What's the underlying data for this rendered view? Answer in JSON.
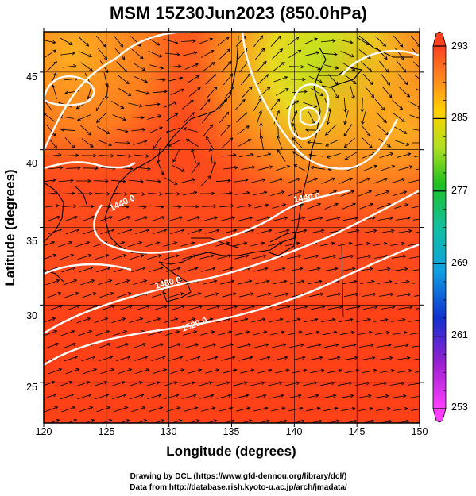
{
  "title": "MSM 15Z30Jun2023 (850.0hPa)",
  "xlabel": "Longitude (degrees)",
  "ylabel": "Latitude  (degrees)",
  "x_ticks": [
    "120",
    "125",
    "130",
    "135",
    "140",
    "145",
    "150"
  ],
  "y_ticks": [
    "25",
    "30",
    "35",
    "40",
    "45"
  ],
  "colorbar_ticks": [
    "293",
    "285",
    "277",
    "269",
    "261",
    "253"
  ],
  "contours": [
    {
      "label": "1440.0"
    },
    {
      "label": "1440.0"
    },
    {
      "label": "1480.0"
    },
    {
      "label": "1520.0"
    }
  ],
  "credits": {
    "line1": "Drawing by DCL (https://www.gfd-dennou.org/library/dcl/)",
    "line2": "Data from http://database.rish.kyoto-u.ac.jp/arch/jmadata/"
  },
  "chart_data": {
    "type": "heatmap",
    "title": "MSM 15Z30Jun2023 (850.0hPa)",
    "xlabel": "Longitude (degrees)",
    "ylabel": "Latitude  (degrees)",
    "xlim": [
      120,
      150
    ],
    "ylim": [
      22.4,
      47.6
    ],
    "colorbar_range": [
      253,
      293
    ],
    "colors": {
      "warm": "#ff3300",
      "orange": "#ff9900",
      "yellow_green": "#b5e61d",
      "magenta": "#ff00ff"
    },
    "contour_levels": [
      1440,
      1480,
      1520
    ]
  }
}
